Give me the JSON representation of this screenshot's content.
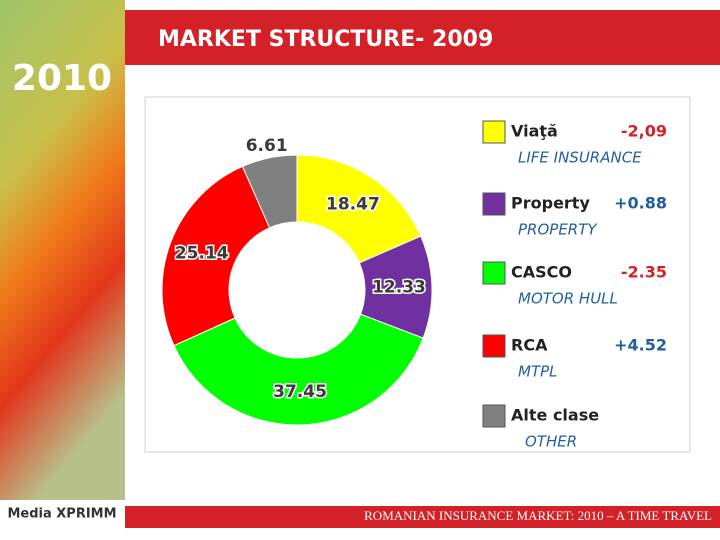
{
  "logo": "2010",
  "chart_data": {
    "type": "donut",
    "title": "MARKET STRUCTURE- 2009",
    "categories": [
      "Viaţă",
      "Property",
      "CASCO",
      "RCA",
      "Alte clase"
    ],
    "translations": [
      "LIFE INSURANCE",
      "PROPERTY",
      "MOTOR HULL",
      "MTPL",
      "OTHER"
    ],
    "values": [
      18.47,
      12.33,
      37.45,
      25.14,
      6.61
    ],
    "colors": [
      "#ffff00",
      "#7030a0",
      "#00ff00",
      "#ff0000",
      "#808080"
    ],
    "changes": [
      {
        "value": -2.09,
        "label": "-2,09"
      },
      {
        "value": 0.88,
        "label": "+0.88"
      },
      {
        "value": -2.35,
        "label": "-2.35"
      },
      {
        "value": 4.52,
        "label": "+4.52"
      },
      null
    ]
  },
  "footer": {
    "brand": "Media XPRIMM",
    "text": "ROMANIAN INSURANCE MARKET: 2010 – A TIME TRAVEL"
  }
}
